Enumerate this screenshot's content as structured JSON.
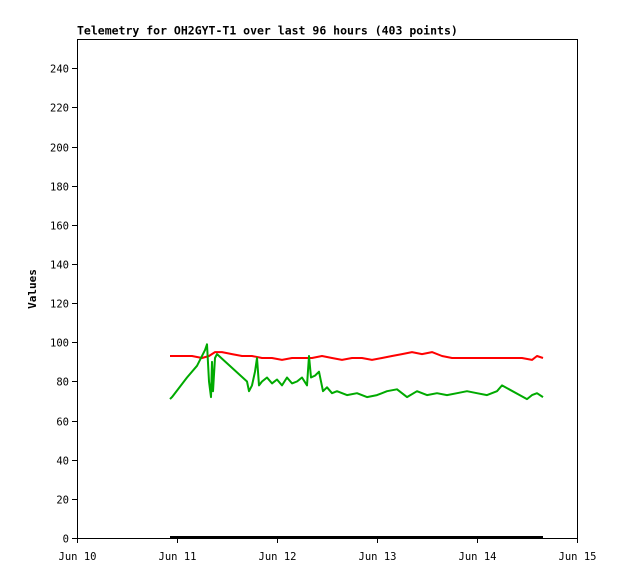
{
  "chart_data": {
    "type": "line",
    "title": "Telemetry for OH2GYT-T1 over last 96 hours (403 points)",
    "xlabel": "",
    "ylabel": "Values",
    "x_ticks": [
      "Jun 10",
      "Jun 11",
      "Jun 12",
      "Jun 13",
      "Jun 14",
      "Jun 15"
    ],
    "y_ticks": [
      0,
      20,
      40,
      60,
      80,
      100,
      120,
      140,
      160,
      180,
      200,
      220,
      240
    ],
    "xlim": [
      0,
      5
    ],
    "ylim": [
      0,
      255
    ],
    "grid": false,
    "series": [
      {
        "color": "#ff0000",
        "x": [
          0.93,
          1.05,
          1.15,
          1.25,
          1.32,
          1.38,
          1.45,
          1.55,
          1.65,
          1.75,
          1.85,
          1.95,
          2.05,
          2.15,
          2.25,
          2.35,
          2.45,
          2.55,
          2.65,
          2.75,
          2.85,
          2.95,
          3.05,
          3.15,
          3.25,
          3.35,
          3.45,
          3.55,
          3.65,
          3.75,
          3.85,
          3.95,
          4.05,
          4.15,
          4.25,
          4.35,
          4.45,
          4.55,
          4.6,
          4.66
        ],
        "values": [
          93,
          93,
          93,
          92,
          93,
          95,
          95,
          94,
          93,
          93,
          92,
          92,
          91,
          92,
          92,
          92,
          93,
          92,
          91,
          92,
          92,
          91,
          92,
          93,
          94,
          95,
          94,
          95,
          93,
          92,
          92,
          92,
          92,
          92,
          92,
          92,
          92,
          91,
          93,
          92
        ]
      },
      {
        "color": "#00aa00",
        "x": [
          0.93,
          0.95,
          1.1,
          1.2,
          1.28,
          1.3,
          1.32,
          1.34,
          1.35,
          1.36,
          1.38,
          1.4,
          1.7,
          1.72,
          1.75,
          1.78,
          1.8,
          1.82,
          1.85,
          1.9,
          1.95,
          2.0,
          2.05,
          2.1,
          2.15,
          2.2,
          2.25,
          2.3,
          2.32,
          2.34,
          2.38,
          2.42,
          2.46,
          2.5,
          2.55,
          2.6,
          2.7,
          2.8,
          2.9,
          3.0,
          3.1,
          3.2,
          3.3,
          3.4,
          3.5,
          3.6,
          3.7,
          3.8,
          3.9,
          4.0,
          4.1,
          4.2,
          4.25,
          4.5,
          4.55,
          4.6,
          4.66
        ],
        "values": [
          71,
          72,
          82,
          88,
          96,
          99,
          80,
          72,
          90,
          75,
          92,
          94,
          80,
          75,
          78,
          85,
          92,
          78,
          80,
          82,
          79,
          81,
          78,
          82,
          79,
          80,
          82,
          78,
          93,
          82,
          83,
          85,
          75,
          77,
          74,
          75,
          73,
          74,
          72,
          73,
          75,
          76,
          72,
          75,
          73,
          74,
          73,
          74,
          75,
          74,
          73,
          75,
          78,
          71,
          73,
          74,
          72
        ]
      },
      {
        "color": "#000000",
        "x": [
          0.93,
          4.66
        ],
        "values": [
          0.5,
          0.5
        ]
      }
    ]
  }
}
